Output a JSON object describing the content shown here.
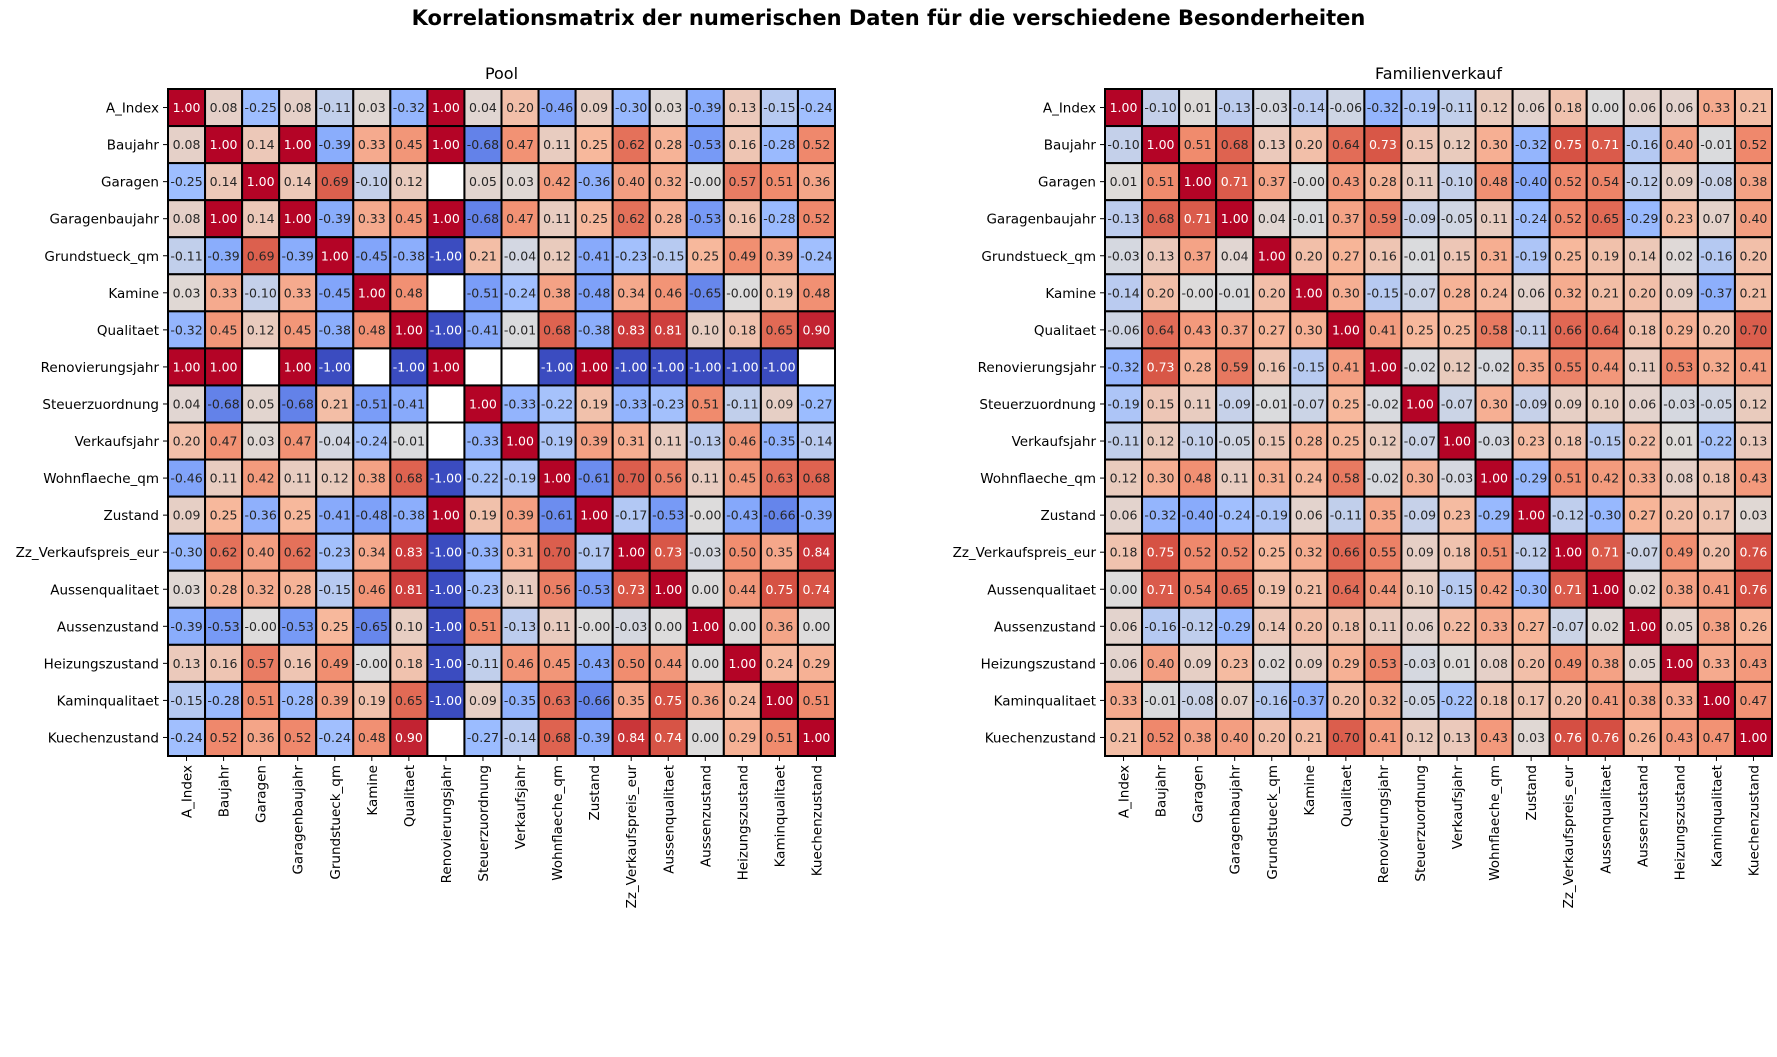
{
  "suptitle": "Korrelationsmatrix der numerischen Daten für die verschiedene Besonderheiten",
  "colormap": {
    "name": "coolwarm",
    "low": "#3b4cc0",
    "mid": "#dddddd",
    "high": "#b40426",
    "missing": "#ffffff"
  },
  "chart_data": [
    {
      "type": "heatmap",
      "title": "Pool",
      "range": [
        -1,
        1
      ],
      "labels": [
        "A_Index",
        "Baujahr",
        "Garagen",
        "Garagenbaujahr",
        "Grundstueck_qm",
        "Kamine",
        "Qualitaet",
        "Renovierungsjahr",
        "Steuerzuordnung",
        "Verkaufsjahr",
        "Wohnflaeche_qm",
        "Zustand",
        "Zz_Verkaufspreis_eur",
        "Aussenqualitaet",
        "Aussenzustand",
        "Heizungszustand",
        "Kaminqualitaet",
        "Kuechenzustand"
      ],
      "values": [
        [
          1.0,
          0.08,
          -0.25,
          0.08,
          -0.11,
          0.03,
          -0.32,
          1.0,
          0.04,
          0.2,
          -0.46,
          0.09,
          -0.3,
          0.03,
          -0.39,
          0.13,
          -0.15,
          -0.24
        ],
        [
          0.08,
          1.0,
          0.14,
          1.0,
          -0.39,
          0.33,
          0.45,
          1.0,
          -0.68,
          0.47,
          0.11,
          0.25,
          0.62,
          0.28,
          -0.53,
          0.16,
          -0.28,
          0.52
        ],
        [
          -0.25,
          0.14,
          1.0,
          0.14,
          0.69,
          -0.1,
          0.12,
          null,
          0.05,
          0.03,
          0.42,
          -0.36,
          0.4,
          0.32,
          -0.0,
          0.57,
          0.51,
          0.36
        ],
        [
          0.08,
          1.0,
          0.14,
          1.0,
          -0.39,
          0.33,
          0.45,
          1.0,
          -0.68,
          0.47,
          0.11,
          0.25,
          0.62,
          0.28,
          -0.53,
          0.16,
          -0.28,
          0.52
        ],
        [
          -0.11,
          -0.39,
          0.69,
          -0.39,
          1.0,
          -0.45,
          -0.38,
          -1.0,
          0.21,
          -0.04,
          0.12,
          -0.41,
          -0.23,
          -0.15,
          0.25,
          0.49,
          0.39,
          -0.24
        ],
        [
          0.03,
          0.33,
          -0.1,
          0.33,
          -0.45,
          1.0,
          0.48,
          null,
          -0.51,
          -0.24,
          0.38,
          -0.48,
          0.34,
          0.46,
          -0.65,
          -0.0,
          0.19,
          0.48
        ],
        [
          -0.32,
          0.45,
          0.12,
          0.45,
          -0.38,
          0.48,
          1.0,
          -1.0,
          -0.41,
          -0.01,
          0.68,
          -0.38,
          0.83,
          0.81,
          0.1,
          0.18,
          0.65,
          0.9
        ],
        [
          1.0,
          1.0,
          null,
          1.0,
          -1.0,
          null,
          -1.0,
          1.0,
          null,
          null,
          -1.0,
          1.0,
          -1.0,
          -1.0,
          -1.0,
          -1.0,
          -1.0,
          null
        ],
        [
          0.04,
          -0.68,
          0.05,
          -0.68,
          0.21,
          -0.51,
          -0.41,
          null,
          1.0,
          -0.33,
          -0.22,
          0.19,
          -0.33,
          -0.23,
          0.51,
          -0.11,
          0.09,
          -0.27
        ],
        [
          0.2,
          0.47,
          0.03,
          0.47,
          -0.04,
          -0.24,
          -0.01,
          null,
          -0.33,
          1.0,
          -0.19,
          0.39,
          0.31,
          0.11,
          -0.13,
          0.46,
          -0.35,
          -0.14
        ],
        [
          -0.46,
          0.11,
          0.42,
          0.11,
          0.12,
          0.38,
          0.68,
          -1.0,
          -0.22,
          -0.19,
          1.0,
          -0.61,
          0.7,
          0.56,
          0.11,
          0.45,
          0.63,
          0.68
        ],
        [
          0.09,
          0.25,
          -0.36,
          0.25,
          -0.41,
          -0.48,
          -0.38,
          1.0,
          0.19,
          0.39,
          -0.61,
          1.0,
          -0.17,
          -0.53,
          -0.0,
          -0.43,
          -0.66,
          -0.39
        ],
        [
          -0.3,
          0.62,
          0.4,
          0.62,
          -0.23,
          0.34,
          0.83,
          -1.0,
          -0.33,
          0.31,
          0.7,
          -0.17,
          1.0,
          0.73,
          -0.03,
          0.5,
          0.35,
          0.84
        ],
        [
          0.03,
          0.28,
          0.32,
          0.28,
          -0.15,
          0.46,
          0.81,
          -1.0,
          -0.23,
          0.11,
          0.56,
          -0.53,
          0.73,
          1.0,
          0.0,
          0.44,
          0.75,
          0.74
        ],
        [
          -0.39,
          -0.53,
          -0.0,
          -0.53,
          0.25,
          -0.65,
          0.1,
          -1.0,
          0.51,
          -0.13,
          0.11,
          -0.0,
          -0.03,
          0.0,
          1.0,
          0.0,
          0.36,
          0.0
        ],
        [
          0.13,
          0.16,
          0.57,
          0.16,
          0.49,
          -0.0,
          0.18,
          -1.0,
          -0.11,
          0.46,
          0.45,
          -0.43,
          0.5,
          0.44,
          0.0,
          1.0,
          0.24,
          0.29
        ],
        [
          -0.15,
          -0.28,
          0.51,
          -0.28,
          0.39,
          0.19,
          0.65,
          -1.0,
          0.09,
          -0.35,
          0.63,
          -0.66,
          0.35,
          0.75,
          0.36,
          0.24,
          1.0,
          0.51
        ],
        [
          -0.24,
          0.52,
          0.36,
          0.52,
          -0.24,
          0.48,
          0.9,
          null,
          -0.27,
          -0.14,
          0.68,
          -0.39,
          0.84,
          0.74,
          0.0,
          0.29,
          0.51,
          1.0
        ]
      ]
    },
    {
      "type": "heatmap",
      "title": "Familienverkauf",
      "range": [
        -1,
        1
      ],
      "labels": [
        "A_Index",
        "Baujahr",
        "Garagen",
        "Garagenbaujahr",
        "Grundstueck_qm",
        "Kamine",
        "Qualitaet",
        "Renovierungsjahr",
        "Steuerzuordnung",
        "Verkaufsjahr",
        "Wohnflaeche_qm",
        "Zustand",
        "Zz_Verkaufspreis_eur",
        "Aussenqualitaet",
        "Aussenzustand",
        "Heizungszustand",
        "Kaminqualitaet",
        "Kuechenzustand"
      ],
      "values": [
        [
          1.0,
          -0.1,
          0.01,
          -0.13,
          -0.03,
          -0.14,
          -0.06,
          -0.32,
          -0.19,
          -0.11,
          0.12,
          0.06,
          0.18,
          0.0,
          0.06,
          0.06,
          0.33,
          0.21
        ],
        [
          -0.1,
          1.0,
          0.51,
          0.68,
          0.13,
          0.2,
          0.64,
          0.73,
          0.15,
          0.12,
          0.3,
          -0.32,
          0.75,
          0.71,
          -0.16,
          0.4,
          -0.01,
          0.52
        ],
        [
          0.01,
          0.51,
          1.0,
          0.71,
          0.37,
          -0.0,
          0.43,
          0.28,
          0.11,
          -0.1,
          0.48,
          -0.4,
          0.52,
          0.54,
          -0.12,
          0.09,
          -0.08,
          0.38
        ],
        [
          -0.13,
          0.68,
          0.71,
          1.0,
          0.04,
          -0.01,
          0.37,
          0.59,
          -0.09,
          -0.05,
          0.11,
          -0.24,
          0.52,
          0.65,
          -0.29,
          0.23,
          0.07,
          0.4
        ],
        [
          -0.03,
          0.13,
          0.37,
          0.04,
          1.0,
          0.2,
          0.27,
          0.16,
          -0.01,
          0.15,
          0.31,
          -0.19,
          0.25,
          0.19,
          0.14,
          0.02,
          -0.16,
          0.2
        ],
        [
          -0.14,
          0.2,
          -0.0,
          -0.01,
          0.2,
          1.0,
          0.3,
          -0.15,
          -0.07,
          0.28,
          0.24,
          0.06,
          0.32,
          0.21,
          0.2,
          0.09,
          -0.37,
          0.21
        ],
        [
          -0.06,
          0.64,
          0.43,
          0.37,
          0.27,
          0.3,
          1.0,
          0.41,
          0.25,
          0.25,
          0.58,
          -0.11,
          0.66,
          0.64,
          0.18,
          0.29,
          0.2,
          0.7
        ],
        [
          -0.32,
          0.73,
          0.28,
          0.59,
          0.16,
          -0.15,
          0.41,
          1.0,
          -0.02,
          0.12,
          -0.02,
          0.35,
          0.55,
          0.44,
          0.11,
          0.53,
          0.32,
          0.41
        ],
        [
          -0.19,
          0.15,
          0.11,
          -0.09,
          -0.01,
          -0.07,
          0.25,
          -0.02,
          1.0,
          -0.07,
          0.3,
          -0.09,
          0.09,
          0.1,
          0.06,
          -0.03,
          -0.05,
          0.12
        ],
        [
          -0.11,
          0.12,
          -0.1,
          -0.05,
          0.15,
          0.28,
          0.25,
          0.12,
          -0.07,
          1.0,
          -0.03,
          0.23,
          0.18,
          -0.15,
          0.22,
          0.01,
          -0.22,
          0.13
        ],
        [
          0.12,
          0.3,
          0.48,
          0.11,
          0.31,
          0.24,
          0.58,
          -0.02,
          0.3,
          -0.03,
          1.0,
          -0.29,
          0.51,
          0.42,
          0.33,
          0.08,
          0.18,
          0.43
        ],
        [
          0.06,
          -0.32,
          -0.4,
          -0.24,
          -0.19,
          0.06,
          -0.11,
          0.35,
          -0.09,
          0.23,
          -0.29,
          1.0,
          -0.12,
          -0.3,
          0.27,
          0.2,
          0.17,
          0.03
        ],
        [
          0.18,
          0.75,
          0.52,
          0.52,
          0.25,
          0.32,
          0.66,
          0.55,
          0.09,
          0.18,
          0.51,
          -0.12,
          1.0,
          0.71,
          -0.07,
          0.49,
          0.2,
          0.76
        ],
        [
          0.0,
          0.71,
          0.54,
          0.65,
          0.19,
          0.21,
          0.64,
          0.44,
          0.1,
          -0.15,
          0.42,
          -0.3,
          0.71,
          1.0,
          0.02,
          0.38,
          0.41,
          0.76
        ],
        [
          0.06,
          -0.16,
          -0.12,
          -0.29,
          0.14,
          0.2,
          0.18,
          0.11,
          0.06,
          0.22,
          0.33,
          0.27,
          -0.07,
          0.02,
          1.0,
          0.05,
          0.38,
          0.26
        ],
        [
          0.06,
          0.4,
          0.09,
          0.23,
          0.02,
          0.09,
          0.29,
          0.53,
          -0.03,
          0.01,
          0.08,
          0.2,
          0.49,
          0.38,
          0.05,
          1.0,
          0.33,
          0.43
        ],
        [
          0.33,
          -0.01,
          -0.08,
          0.07,
          -0.16,
          -0.37,
          0.2,
          0.32,
          -0.05,
          -0.22,
          0.18,
          0.17,
          0.2,
          0.41,
          0.38,
          0.33,
          1.0,
          0.47
        ],
        [
          0.21,
          0.52,
          0.38,
          0.4,
          0.2,
          0.21,
          0.7,
          0.41,
          0.12,
          0.13,
          0.43,
          0.03,
          0.76,
          0.76,
          0.26,
          0.43,
          0.47,
          1.0
        ]
      ]
    }
  ]
}
